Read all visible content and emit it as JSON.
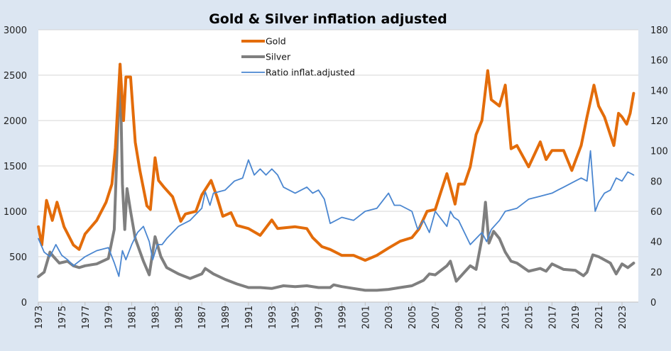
{
  "chart_data": {
    "type": "line",
    "title": "Gold & Silver inflation adjusted",
    "xlabel": "",
    "ylabel": "",
    "y2label": "",
    "xlim": [
      1973,
      2024
    ],
    "ylim": [
      0,
      3000
    ],
    "y2lim": [
      0,
      180
    ],
    "grid": true,
    "legend_position": "top-center",
    "x_ticks": [
      "1973",
      "1975",
      "1977",
      "1979",
      "1981",
      "1983",
      "1985",
      "1987",
      "1989",
      "1991",
      "1993",
      "1995",
      "1997",
      "1999",
      "2001",
      "2003",
      "2005",
      "2007",
      "2009",
      "2011",
      "2013",
      "2015",
      "2017",
      "2019",
      "2021",
      "2023"
    ],
    "y_ticks": [
      "0",
      "500",
      "1000",
      "1500",
      "2000",
      "2500",
      "3000"
    ],
    "y2_ticks": [
      "0",
      "20",
      "40",
      "60",
      "80",
      "100",
      "120",
      "140",
      "160",
      "180"
    ],
    "series": [
      {
        "name": "Gold",
        "axis": "left",
        "color": "#e36c0a",
        "x": [
          1973.0,
          1973.3,
          1973.7,
          1974.2,
          1974.6,
          1975.2,
          1976.0,
          1976.5,
          1977.0,
          1978.0,
          1978.8,
          1979.3,
          1979.6,
          1980.0,
          1980.3,
          1980.5,
          1980.9,
          1981.3,
          1981.7,
          1982.3,
          1982.6,
          1983.0,
          1983.3,
          1983.8,
          1984.5,
          1985.2,
          1985.6,
          1986.5,
          1987.0,
          1987.8,
          1988.3,
          1988.8,
          1989.5,
          1990.0,
          1991.0,
          1992.0,
          1993.0,
          1993.5,
          1995.0,
          1996.0,
          1996.5,
          1997.3,
          1998.0,
          1999.0,
          2000.0,
          2001.0,
          2002.0,
          2003.0,
          2004.0,
          2005.0,
          2005.6,
          2006.3,
          2007.0,
          2007.5,
          2008.0,
          2008.7,
          2009.0,
          2009.5,
          2010.0,
          2010.5,
          2011.0,
          2011.5,
          2011.8,
          2012.5,
          2013.0,
          2013.5,
          2014.0,
          2015.0,
          2016.0,
          2016.5,
          2017.0,
          2018.0,
          2018.7,
          2019.5,
          2020.0,
          2020.6,
          2021.0,
          2021.5,
          2022.3,
          2022.7,
          2023.0,
          2023.4,
          2023.7,
          2024.0
        ],
        "values": [
          830,
          630,
          1120,
          900,
          1100,
          830,
          630,
          580,
          750,
          900,
          1100,
          1300,
          1700,
          2620,
          2000,
          2480,
          2480,
          1760,
          1450,
          1060,
          1020,
          1590,
          1340,
          1260,
          1160,
          890,
          970,
          1000,
          1180,
          1340,
          1160,
          945,
          985,
          845,
          810,
          735,
          905,
          810,
          830,
          810,
          710,
          610,
          580,
          515,
          515,
          460,
          515,
          595,
          670,
          710,
          805,
          1000,
          1020,
          1220,
          1415,
          1080,
          1300,
          1300,
          1490,
          1845,
          2000,
          2550,
          2230,
          2160,
          2390,
          1690,
          1725,
          1490,
          1765,
          1570,
          1670,
          1670,
          1450,
          1725,
          2040,
          2390,
          2160,
          2040,
          1725,
          2080,
          2040,
          1960,
          2080,
          2300
        ]
      },
      {
        "name": "Silver",
        "axis": "left",
        "color": "#7f7f7f",
        "x": [
          1973.0,
          1973.5,
          1974.0,
          1974.3,
          1974.8,
          1975.5,
          1976.0,
          1976.5,
          1977.0,
          1978.0,
          1979.0,
          1979.5,
          1979.8,
          1980.0,
          1980.2,
          1980.4,
          1980.6,
          1980.9,
          1981.3,
          1982.0,
          1982.5,
          1983.0,
          1983.5,
          1984.0,
          1985.0,
          1986.0,
          1987.0,
          1987.3,
          1988.0,
          1989.0,
          1990.0,
          1991.0,
          1992.0,
          1993.0,
          1994.0,
          1995.0,
          1996.0,
          1997.0,
          1998.0,
          1998.3,
          1999.0,
          2000.0,
          2001.0,
          2002.0,
          2003.0,
          2004.0,
          2005.0,
          2006.0,
          2006.5,
          2007.0,
          2008.0,
          2008.3,
          2008.8,
          2009.5,
          2010.0,
          2010.5,
          2011.0,
          2011.3,
          2011.6,
          2012.0,
          2012.5,
          2013.0,
          2013.5,
          2014.0,
          2015.0,
          2016.0,
          2016.5,
          2017.0,
          2018.0,
          2019.0,
          2019.7,
          2020.0,
          2020.5,
          2021.0,
          2022.0,
          2022.5,
          2023.0,
          2023.5,
          2024.0
        ],
        "values": [
          280,
          330,
          550,
          500,
          430,
          450,
          400,
          380,
          400,
          420,
          480,
          800,
          1900,
          2620,
          1300,
          800,
          1250,
          1000,
          700,
          450,
          300,
          720,
          500,
          380,
          310,
          260,
          310,
          370,
          310,
          250,
          200,
          160,
          160,
          150,
          180,
          170,
          180,
          160,
          160,
          190,
          170,
          150,
          130,
          130,
          140,
          160,
          180,
          240,
          310,
          300,
          400,
          450,
          230,
          330,
          400,
          360,
          700,
          1100,
          650,
          780,
          700,
          550,
          450,
          430,
          340,
          370,
          340,
          420,
          360,
          350,
          290,
          330,
          520,
          500,
          430,
          310,
          420,
          380,
          430
        ]
      },
      {
        "name": "Ratio inflat.adjusted",
        "axis": "right",
        "color": "#4a86d0",
        "x": [
          1973.0,
          1973.5,
          1974.0,
          1974.5,
          1975.0,
          1975.5,
          1976.0,
          1976.5,
          1977.0,
          1978.0,
          1979.0,
          1979.5,
          1979.9,
          1980.2,
          1980.5,
          1981.0,
          1981.5,
          1982.0,
          1982.5,
          1982.8,
          1983.2,
          1983.6,
          1984.0,
          1985.0,
          1986.0,
          1986.5,
          1987.0,
          1987.3,
          1987.7,
          1988.0,
          1989.0,
          1989.8,
          1990.5,
          1991.0,
          1991.5,
          1992.0,
          1992.5,
          1993.0,
          1993.5,
          1994.0,
          1995.0,
          1996.0,
          1996.5,
          1997.0,
          1997.5,
          1998.0,
          1999.0,
          2000.0,
          2001.0,
          2002.0,
          2003.0,
          2003.5,
          2004.0,
          2005.0,
          2005.5,
          2006.0,
          2006.5,
          2007.0,
          2008.0,
          2008.3,
          2008.6,
          2009.0,
          2010.0,
          2011.0,
          2011.4,
          2011.8,
          2012.5,
          2013.0,
          2014.0,
          2015.0,
          2016.0,
          2017.0,
          2017.5,
          2018.0,
          2019.0,
          2019.5,
          2020.0,
          2020.3,
          2020.7,
          2021.0,
          2021.5,
          2022.0,
          2022.5,
          2023.0,
          2023.5,
          2024.0
        ],
        "values": [
          42,
          33,
          30,
          38,
          31,
          28,
          24,
          27,
          30,
          34,
          36,
          26,
          17,
          34,
          28,
          38,
          46,
          50,
          40,
          28,
          38,
          38,
          42,
          50,
          54,
          58,
          62,
          73,
          64,
          72,
          74,
          80,
          82,
          94,
          84,
          88,
          84,
          88,
          84,
          76,
          72,
          76,
          72,
          74,
          68,
          52,
          56,
          54,
          60,
          62,
          72,
          64,
          64,
          60,
          48,
          54,
          46,
          60,
          50,
          60,
          56,
          54,
          38,
          46,
          40,
          48,
          54,
          60,
          62,
          68,
          70,
          72,
          74,
          76,
          80,
          82,
          80,
          100,
          60,
          66,
          72,
          74,
          82,
          80,
          86,
          84
        ]
      }
    ]
  }
}
